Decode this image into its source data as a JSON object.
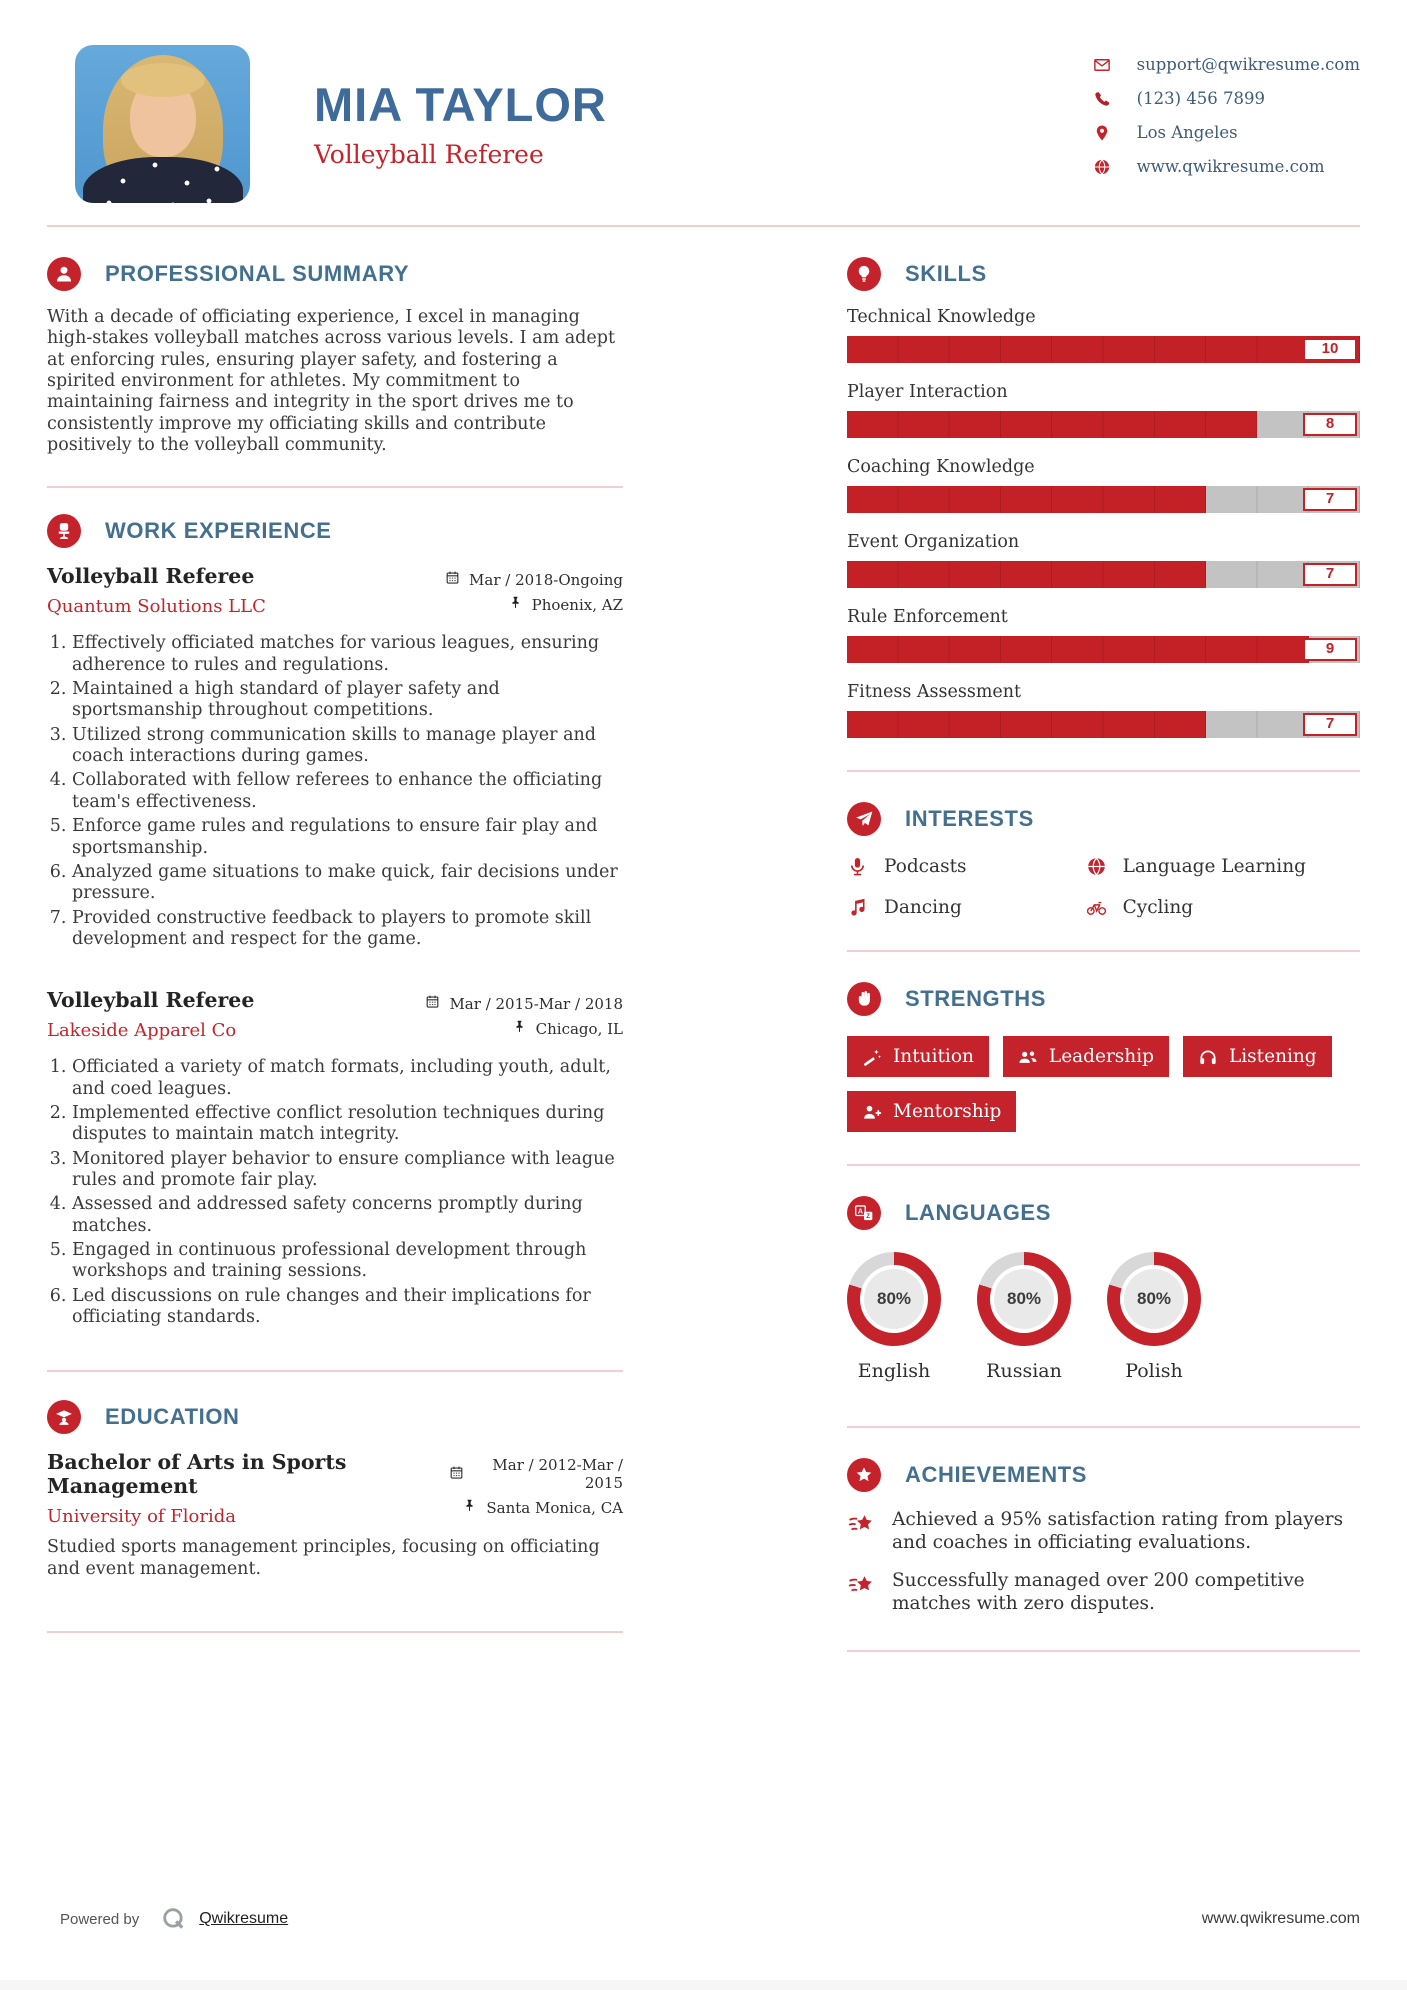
{
  "header": {
    "name": "MIA TAYLOR",
    "title": "Volleyball Referee",
    "contact": [
      {
        "icon": "email-icon",
        "text": "support@qwikresume.com"
      },
      {
        "icon": "phone-icon",
        "text": "(123) 456 7899"
      },
      {
        "icon": "location-icon",
        "text": "Los Angeles"
      },
      {
        "icon": "website-icon",
        "text": "www.qwikresume.com"
      }
    ]
  },
  "summary": {
    "heading": "PROFESSIONAL SUMMARY",
    "text": "With a decade of officiating experience, I excel in managing high-stakes volleyball matches across various levels. I am adept at enforcing rules, ensuring player safety, and fostering a spirited environment for athletes. My commitment to maintaining fairness and integrity in the sport drives me to consistently improve my officiating skills and contribute positively to the volleyball community."
  },
  "work": {
    "heading": "WORK EXPERIENCE",
    "jobs": [
      {
        "title": "Volleyball Referee",
        "company": "Quantum Solutions LLC",
        "dates": "Mar / 2018-Ongoing",
        "location": "Phoenix, AZ",
        "bullets": [
          "Effectively officiated matches for various leagues, ensuring adherence to rules and regulations.",
          "Maintained a high standard of player safety and sportsmanship throughout competitions.",
          "Utilized strong communication skills to manage player and coach interactions during games.",
          "Collaborated with fellow referees to enhance the officiating team's effectiveness.",
          "Enforce game rules and regulations to ensure fair play and sportsmanship.",
          "Analyzed game situations to make quick, fair decisions under pressure.",
          "Provided constructive feedback to players to promote skill development and respect for the game."
        ]
      },
      {
        "title": "Volleyball Referee",
        "company": "Lakeside Apparel Co",
        "dates": "Mar / 2015-Mar / 2018",
        "location": "Chicago, IL",
        "bullets": [
          "Officiated a variety of match formats, including youth, adult, and coed leagues.",
          "Implemented effective conflict resolution techniques during disputes to maintain match integrity.",
          "Monitored player behavior to ensure compliance with league rules and promote fair play.",
          "Assessed and addressed safety concerns promptly during matches.",
          "Engaged in continuous professional development through workshops and training sessions.",
          "Led discussions on rule changes and their implications for officiating standards."
        ]
      }
    ]
  },
  "education": {
    "heading": "EDUCATION",
    "degree": "Bachelor of Arts in Sports Management",
    "school": "University of Florida",
    "dates": "Mar / 2012-Mar / 2015",
    "location": "Santa Monica, CA",
    "description": "Studied sports management principles, focusing on officiating and event management."
  },
  "skills": {
    "heading": "SKILLS",
    "max": 10,
    "items": [
      {
        "name": "Technical Knowledge",
        "value": 10
      },
      {
        "name": "Player Interaction",
        "value": 8
      },
      {
        "name": "Coaching Knowledge",
        "value": 7
      },
      {
        "name": "Event Organization",
        "value": 7
      },
      {
        "name": "Rule Enforcement",
        "value": 9
      },
      {
        "name": "Fitness Assessment",
        "value": 7
      }
    ]
  },
  "interests": {
    "heading": "INTERESTS",
    "items": [
      {
        "icon": "microphone-icon",
        "label": "Podcasts"
      },
      {
        "icon": "globe-icon",
        "label": "Language Learning"
      },
      {
        "icon": "music-note-icon",
        "label": "Dancing"
      },
      {
        "icon": "bicycle-icon",
        "label": "Cycling"
      }
    ]
  },
  "strengths": {
    "heading": "STRENGTHS",
    "items": [
      {
        "icon": "wand-icon",
        "label": "Intuition"
      },
      {
        "icon": "users-icon",
        "label": "Leadership"
      },
      {
        "icon": "headphones-icon",
        "label": "Listening"
      },
      {
        "icon": "person-plus-icon",
        "label": "Mentorship"
      }
    ]
  },
  "languages": {
    "heading": "LANGUAGES",
    "items": [
      {
        "name": "English",
        "percent": 80,
        "display": "80%"
      },
      {
        "name": "Russian",
        "percent": 80,
        "display": "80%"
      },
      {
        "name": "Polish",
        "percent": 80,
        "display": "80%"
      }
    ]
  },
  "achievements": {
    "heading": "ACHIEVEMENTS",
    "items": [
      "Achieved a 95% satisfaction rating from players and coaches in officiating evaluations.",
      "Successfully managed over 200 competitive matches with zero disputes."
    ]
  },
  "footer": {
    "powered_by": "Powered by",
    "brand": "Qwikresume",
    "website": "www.qwikresume.com"
  },
  "colors": {
    "accent_red": "#c5232b",
    "bar_red": "#c42127",
    "bar_gray": "#c3c3c3",
    "donut_gray": "#d8d8d8",
    "heading_blue": "#44708f",
    "name_blue": "#3e6b99",
    "divider_pink": "#f1ced1"
  }
}
